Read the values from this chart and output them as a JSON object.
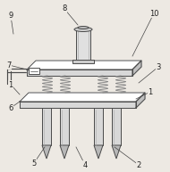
{
  "bg_color": "#ede9e3",
  "line_color": "#4a4a4a",
  "lw": 0.7,
  "fig_width": 1.9,
  "fig_height": 1.93,
  "dpi": 100
}
